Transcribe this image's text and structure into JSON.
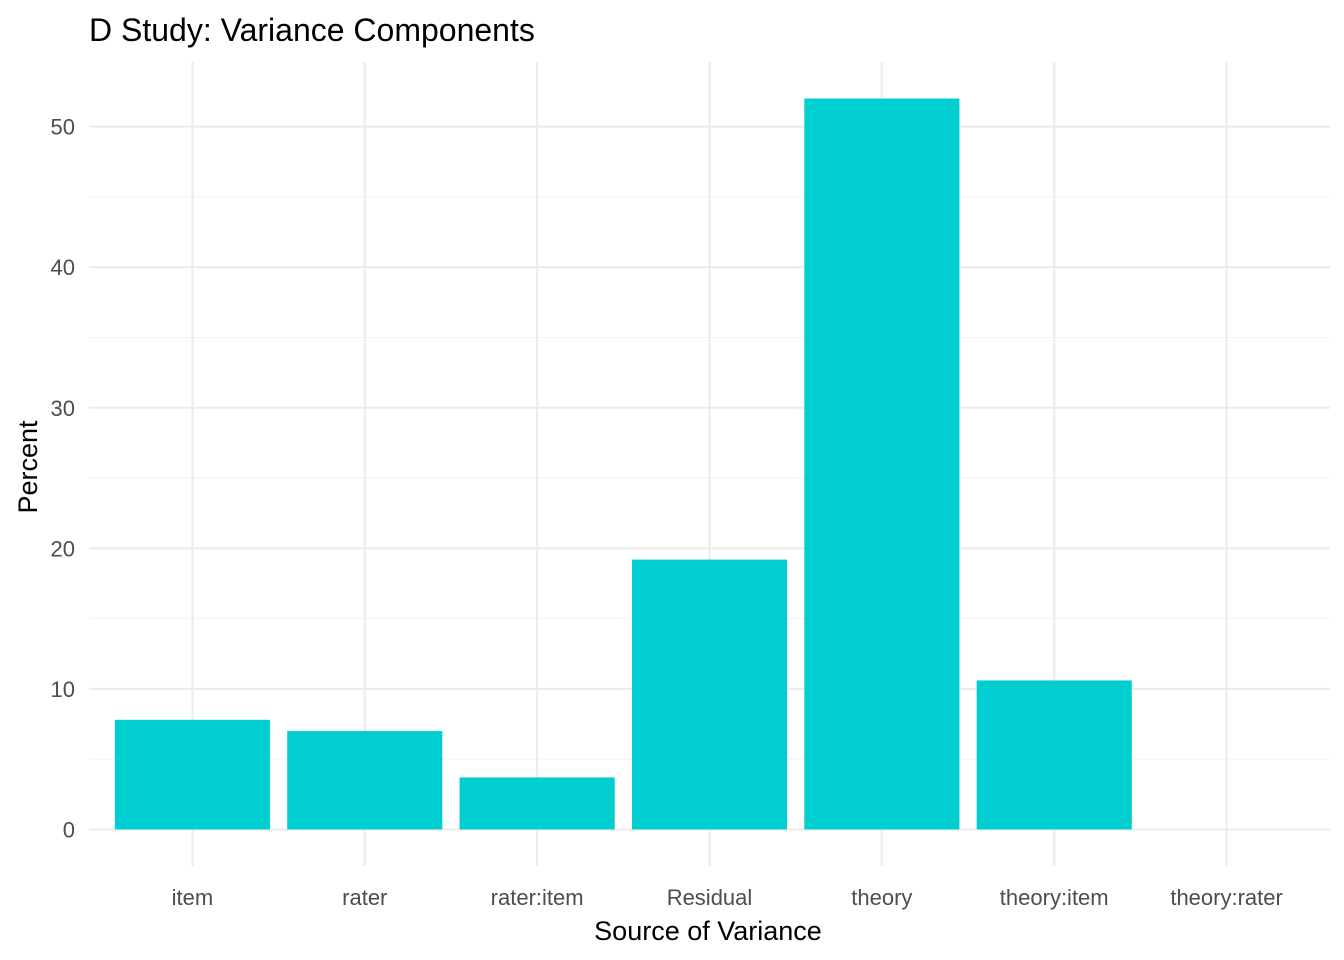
{
  "chart_data": {
    "type": "bar",
    "title": "D Study: Variance Components",
    "xlabel": "Source of Variance",
    "ylabel": "Percent",
    "categories": [
      "item",
      "rater",
      "rater:item",
      "Residual",
      "theory",
      "theory:item",
      "theory:rater"
    ],
    "values": [
      7.8,
      7.0,
      3.7,
      19.2,
      52.0,
      10.6,
      0.0
    ],
    "ylim": [
      -2.6,
      54.6
    ],
    "yticks": [
      0,
      10,
      20,
      30,
      40,
      50
    ],
    "grid": true,
    "bar_color": "#00CED1",
    "theme": "minimal"
  }
}
